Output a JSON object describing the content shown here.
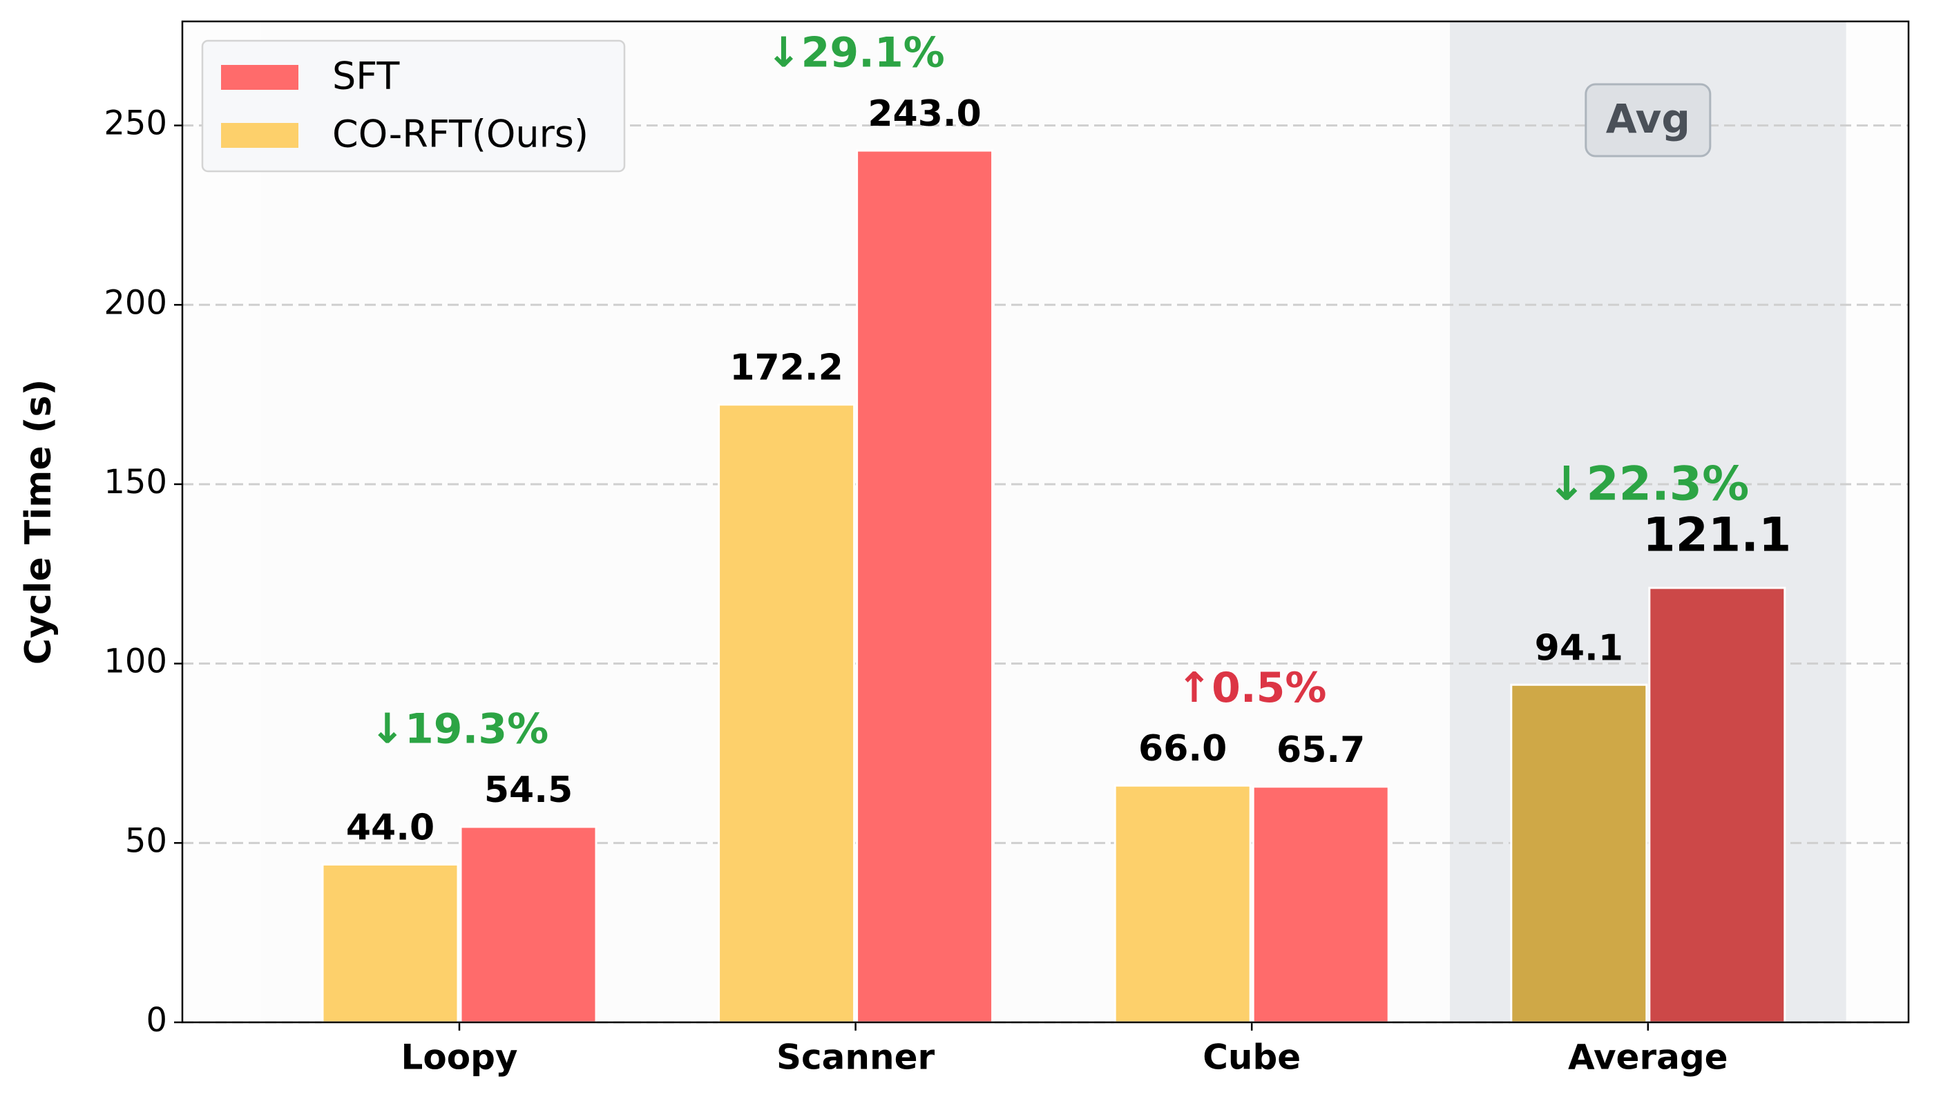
{
  "chart_data": {
    "type": "bar",
    "ylabel": "Cycle Time (s)",
    "categories": [
      "Loopy",
      "Scanner",
      "Cube",
      "Average"
    ],
    "series": [
      {
        "name": "SFT",
        "color": "#ff6b6b",
        "highlight_color": "#cc4848",
        "values": [
          54.5,
          243.0,
          65.7,
          121.1
        ],
        "value_labels": [
          "54.5",
          "243.0",
          "65.7",
          "121.1"
        ]
      },
      {
        "name": "CO-RFT(Ours)",
        "color": "#fdd06b",
        "highlight_color": "#cfa847",
        "values": [
          44.0,
          172.2,
          66.0,
          94.1
        ],
        "value_labels": [
          "44.0",
          "172.2",
          "66.0",
          "94.1"
        ]
      }
    ],
    "annotations": [
      {
        "text": "↓19.3%",
        "color": "#2ca444"
      },
      {
        "text": "↓29.1%",
        "color": "#2ca444"
      },
      {
        "text": "↑0.5%",
        "color": "#dc3545"
      },
      {
        "text": "↓22.3%",
        "color": "#2ca444"
      }
    ],
    "highlight_label": "Avg",
    "ylim": [
      0,
      279
    ],
    "yticks": [
      0,
      50,
      100,
      150,
      200,
      250
    ],
    "grid": true,
    "legend": "upper left"
  }
}
